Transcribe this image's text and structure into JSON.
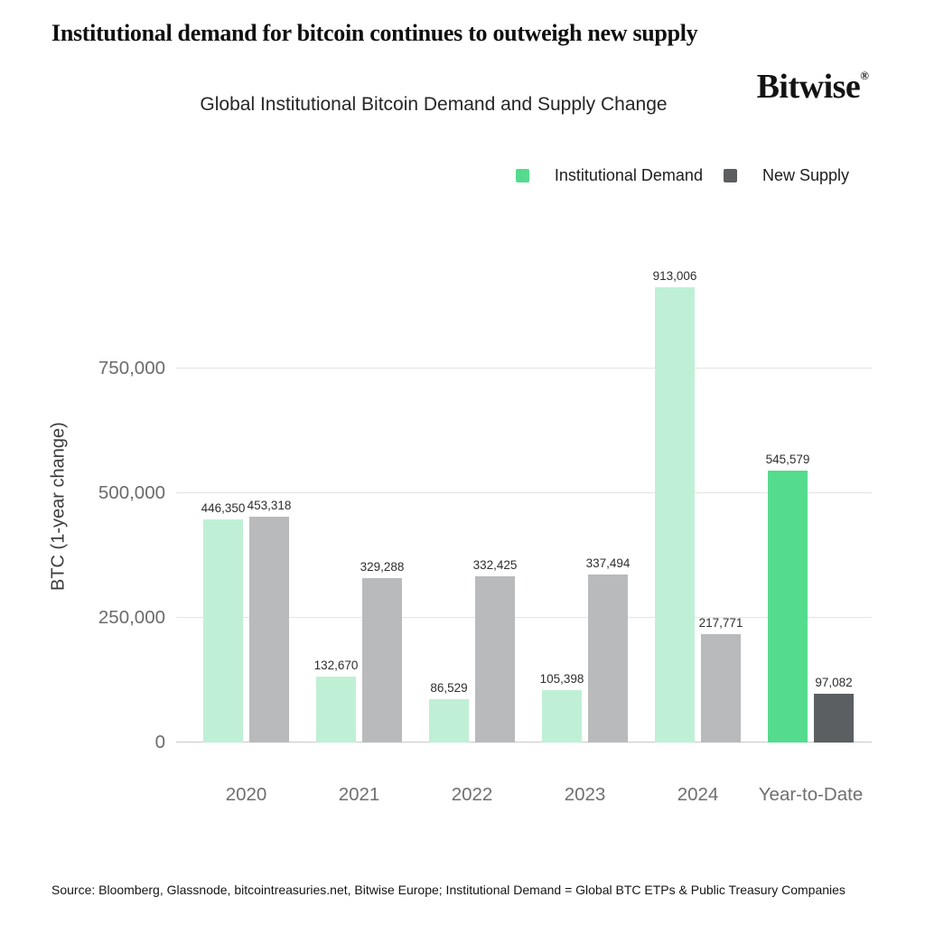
{
  "page": {
    "headline": "Institutional demand for bitcoin continues to outweigh new supply",
    "brand": {
      "wordmark": "Bitwise",
      "registered": "®"
    },
    "source_note": "Source: Bloomberg, Glassnode, bitcointreasuries.net, Bitwise Europe; Institutional Demand = Global BTC ETPs & Public Treasury Companies"
  },
  "chart_data": {
    "type": "bar",
    "title": "Global Institutional Bitcoin Demand and Supply Change",
    "categories": [
      "2020",
      "2021",
      "2022",
      "2023",
      "2024",
      "Year-to-Date"
    ],
    "series": [
      {
        "name": "Institutional Demand",
        "values": [
          446350,
          132670,
          86529,
          105398,
          913006,
          545579
        ],
        "value_labels": [
          "446,350",
          "132,670",
          "86,529",
          "105,398",
          "913,006",
          "545,579"
        ],
        "color": "#bff0d5",
        "highlight_color": "#55db8e"
      },
      {
        "name": "New Supply",
        "values": [
          453318,
          329288,
          332425,
          337494,
          217771,
          97082
        ],
        "value_labels": [
          "453,318",
          "329,288",
          "332,425",
          "337,494",
          "217,771",
          "97,082"
        ],
        "color": "#b9babc",
        "highlight_color": "#5b5f62"
      }
    ],
    "highlight_category": "Year-to-Date",
    "ylabel": "BTC (1-year change)",
    "xlabel": "",
    "ylim": [
      0,
      945000
    ],
    "yticks": [
      {
        "value": 0,
        "label": "0"
      },
      {
        "value": 250000,
        "label": "250,000"
      },
      {
        "value": 500000,
        "label": "500,000"
      },
      {
        "value": 750000,
        "label": "750,000"
      }
    ],
    "grid": "horizontal gridlines at y ticks, light gray",
    "legend_position": "top-right"
  },
  "colors": {
    "grid_line": "#e4e4e4",
    "baseline": "#c9c9c9",
    "axis_text": "#6b6b6b",
    "value_label_text": "#2e2e2e"
  }
}
